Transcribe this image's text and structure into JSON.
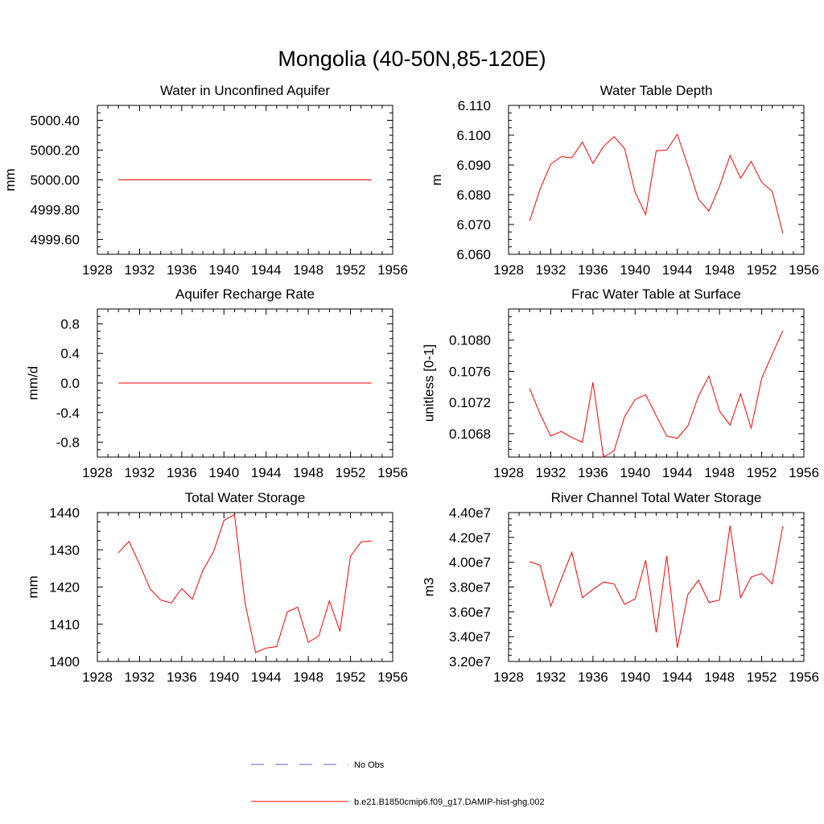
{
  "title": "Mongolia (40-50N,85-120E)",
  "legend": {
    "placement": "bottom-center",
    "items": [
      {
        "label": "No Obs",
        "color": "#5566cc",
        "dash": true
      },
      {
        "label": "b.e21.B1850cmip6.f09_g17.DAMIP-hist-ghg.002",
        "color": "#ff0000",
        "dash": false
      }
    ]
  },
  "chart_data": [
    {
      "type": "line",
      "title": "Water in Unconfined Aquifer",
      "ylabel": "mm",
      "xlim": [
        1928,
        1956
      ],
      "ylim": [
        4999.5,
        5000.5
      ],
      "xticks": [
        "1928",
        "1932",
        "1936",
        "1940",
        "1944",
        "1948",
        "1952",
        "1956"
      ],
      "yticks": [
        {
          "value": 4999.6,
          "label": "4999.60"
        },
        {
          "value": 4999.8,
          "label": "4999.80"
        },
        {
          "value": 5000.0,
          "label": "5000.00"
        },
        {
          "value": 5000.2,
          "label": "5000.20"
        },
        {
          "value": 5000.4,
          "label": "5000.40"
        }
      ],
      "x": [
        1930,
        1931,
        1932,
        1933,
        1934,
        1935,
        1936,
        1937,
        1938,
        1939,
        1940,
        1941,
        1942,
        1943,
        1944,
        1945,
        1946,
        1947,
        1948,
        1949,
        1950,
        1951,
        1952,
        1953,
        1954
      ],
      "series": [
        {
          "color": "#ff0000",
          "values": [
            5000,
            5000,
            5000,
            5000,
            5000,
            5000,
            5000,
            5000,
            5000,
            5000,
            5000,
            5000,
            5000,
            5000,
            5000,
            5000,
            5000,
            5000,
            5000,
            5000,
            5000,
            5000,
            5000,
            5000,
            5000
          ]
        }
      ]
    },
    {
      "type": "line",
      "title": "Water Table Depth",
      "ylabel": "m",
      "xlim": [
        1928,
        1956
      ],
      "ylim": [
        6.06,
        6.11
      ],
      "xticks": [
        "1928",
        "1932",
        "1936",
        "1940",
        "1944",
        "1948",
        "1952",
        "1956"
      ],
      "yticks": [
        {
          "value": 6.06,
          "label": "6.060"
        },
        {
          "value": 6.07,
          "label": "6.070"
        },
        {
          "value": 6.08,
          "label": "6.080"
        },
        {
          "value": 6.09,
          "label": "6.090"
        },
        {
          "value": 6.1,
          "label": "6.100"
        },
        {
          "value": 6.11,
          "label": "6.110"
        }
      ],
      "x": [
        1930,
        1931,
        1932,
        1933,
        1934,
        1935,
        1936,
        1937,
        1938,
        1939,
        1940,
        1941,
        1942,
        1943,
        1944,
        1945,
        1946,
        1947,
        1948,
        1949,
        1950,
        1951,
        1952,
        1953,
        1954
      ],
      "series": [
        {
          "color": "#ff0000",
          "values": [
            6.0712,
            6.082,
            6.0903,
            6.0928,
            6.0924,
            6.0977,
            6.0905,
            6.0962,
            6.0995,
            6.0955,
            6.0808,
            6.0733,
            6.0948,
            6.095,
            6.1003,
            6.0897,
            6.0785,
            6.0745,
            6.0828,
            6.0932,
            6.0856,
            6.0912,
            6.0842,
            6.0811,
            6.0671
          ]
        }
      ]
    },
    {
      "type": "line",
      "title": "Aquifer Recharge Rate",
      "ylabel": "mm/d",
      "xlim": [
        1928,
        1956
      ],
      "ylim": [
        -1.0,
        1.0
      ],
      "xticks": [
        "1928",
        "1932",
        "1936",
        "1940",
        "1944",
        "1948",
        "1952",
        "1956"
      ],
      "yticks": [
        {
          "value": -0.8,
          "label": "-0.8"
        },
        {
          "value": -0.4,
          "label": "-0.4"
        },
        {
          "value": 0.0,
          "label": "0.0"
        },
        {
          "value": 0.4,
          "label": "0.4"
        },
        {
          "value": 0.8,
          "label": "0.8"
        }
      ],
      "x": [
        1930,
        1931,
        1932,
        1933,
        1934,
        1935,
        1936,
        1937,
        1938,
        1939,
        1940,
        1941,
        1942,
        1943,
        1944,
        1945,
        1946,
        1947,
        1948,
        1949,
        1950,
        1951,
        1952,
        1953,
        1954
      ],
      "series": [
        {
          "color": "#ff0000",
          "values": [
            0,
            0,
            0,
            0,
            0,
            0,
            0,
            0,
            0,
            0,
            0,
            0,
            0,
            0,
            0,
            0,
            0,
            0,
            0,
            0,
            0,
            0,
            0,
            0,
            0
          ]
        }
      ]
    },
    {
      "type": "line",
      "title": "Frac Water Table at Surface",
      "ylabel": "unitless [0-1]",
      "xlim": [
        1928,
        1956
      ],
      "ylim": [
        0.1065,
        0.1084
      ],
      "xticks": [
        "1928",
        "1932",
        "1936",
        "1940",
        "1944",
        "1948",
        "1952",
        "1956"
      ],
      "yticks": [
        {
          "value": 0.1068,
          "label": "0.1068"
        },
        {
          "value": 0.1072,
          "label": "0.1072"
        },
        {
          "value": 0.1076,
          "label": "0.1076"
        },
        {
          "value": 0.108,
          "label": "0.1080"
        }
      ],
      "x": [
        1930,
        1931,
        1932,
        1933,
        1934,
        1935,
        1936,
        1937,
        1938,
        1939,
        1940,
        1941,
        1942,
        1943,
        1944,
        1945,
        1946,
        1947,
        1948,
        1949,
        1950,
        1951,
        1952,
        1953,
        1954
      ],
      "series": [
        {
          "color": "#ff0000",
          "values": [
            0.10738,
            0.10705,
            0.10677,
            0.10683,
            0.10675,
            0.10669,
            0.10746,
            0.1065,
            0.10658,
            0.10702,
            0.10724,
            0.1073,
            0.10703,
            0.10677,
            0.10674,
            0.1069,
            0.10728,
            0.10754,
            0.10709,
            0.10691,
            0.10731,
            0.10687,
            0.10751,
            0.10782,
            0.10812
          ]
        }
      ]
    },
    {
      "type": "line",
      "title": "Total Water Storage",
      "ylabel": "mm",
      "xlim": [
        1928,
        1956
      ],
      "ylim": [
        1400,
        1440
      ],
      "xticks": [
        "1928",
        "1932",
        "1936",
        "1940",
        "1944",
        "1948",
        "1952",
        "1956"
      ],
      "yticks": [
        {
          "value": 1400,
          "label": "1400"
        },
        {
          "value": 1410,
          "label": "1410"
        },
        {
          "value": 1420,
          "label": "1420"
        },
        {
          "value": 1430,
          "label": "1430"
        },
        {
          "value": 1440,
          "label": "1440"
        }
      ],
      "x": [
        1930,
        1931,
        1932,
        1933,
        1934,
        1935,
        1936,
        1937,
        1938,
        1939,
        1940,
        1941,
        1942,
        1943,
        1944,
        1945,
        1946,
        1947,
        1948,
        1949,
        1950,
        1951,
        1952,
        1953,
        1954
      ],
      "series": [
        {
          "color": "#ff0000",
          "values": [
            1429.2,
            1432.3,
            1426.1,
            1419.5,
            1416.5,
            1415.7,
            1419.6,
            1416.7,
            1424.5,
            1429.4,
            1437.9,
            1439.5,
            1415.7,
            1402.4,
            1403.6,
            1404.0,
            1413.3,
            1414.6,
            1405.1,
            1406.9,
            1416.3,
            1408.1,
            1428.3,
            1432.1,
            1432.4
          ]
        }
      ]
    },
    {
      "type": "line",
      "title": "River Channel Total Water Storage",
      "ylabel": "m3",
      "xlim": [
        1928,
        1956
      ],
      "ylim": [
        32000000,
        44000000
      ],
      "xticks": [
        "1928",
        "1932",
        "1936",
        "1940",
        "1944",
        "1948",
        "1952",
        "1956"
      ],
      "yticks": [
        {
          "value": 32000000,
          "label": "3.20e7"
        },
        {
          "value": 34000000,
          "label": "3.40e7"
        },
        {
          "value": 36000000,
          "label": "3.60e7"
        },
        {
          "value": 38000000,
          "label": "3.80e7"
        },
        {
          "value": 40000000,
          "label": "4.00e7"
        },
        {
          "value": 42000000,
          "label": "4.20e7"
        },
        {
          "value": 44000000,
          "label": "4.40e7"
        }
      ],
      "x": [
        1930,
        1931,
        1932,
        1933,
        1934,
        1935,
        1936,
        1937,
        1938,
        1939,
        1940,
        1941,
        1942,
        1943,
        1944,
        1945,
        1946,
        1947,
        1948,
        1949,
        1950,
        1951,
        1952,
        1953,
        1954
      ],
      "series": [
        {
          "color": "#ff0000",
          "values": [
            40050000,
            39750000,
            36450000,
            38650000,
            40800000,
            37150000,
            37800000,
            38400000,
            38250000,
            36600000,
            37050000,
            40150000,
            34350000,
            40500000,
            33100000,
            37400000,
            38550000,
            36750000,
            36950000,
            42950000,
            37150000,
            38800000,
            39100000,
            38250000,
            42900000
          ]
        }
      ]
    }
  ]
}
